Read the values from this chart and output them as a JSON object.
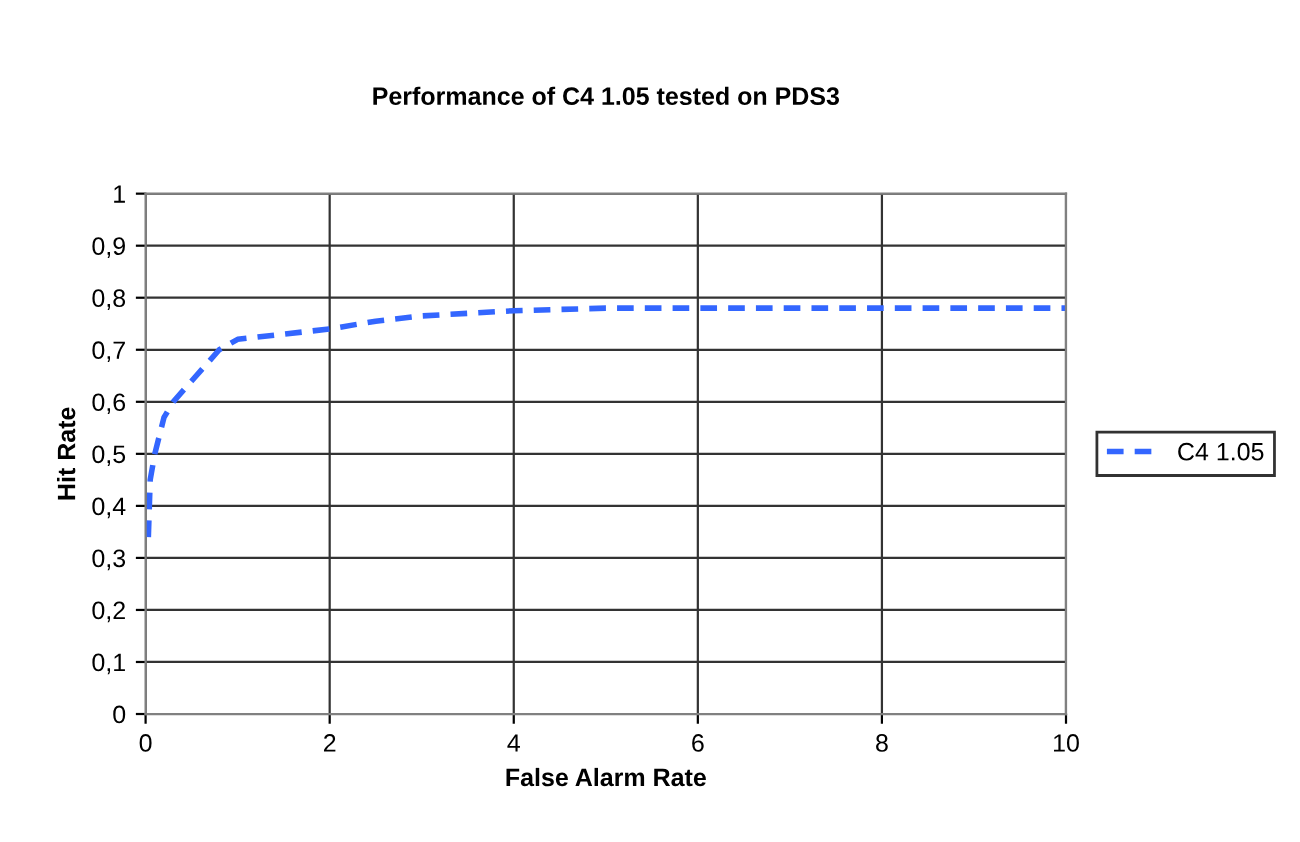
{
  "chart_data": {
    "type": "line",
    "title": "Performance of C4 1.05 tested on PDS3",
    "xlabel": "False Alarm Rate",
    "ylabel": "Hit Rate",
    "series": [
      {
        "name": "C4 1.05",
        "color": "#3366ff",
        "x": [
          0.03,
          0.05,
          0.1,
          0.2,
          0.3,
          0.5,
          0.8,
          1.0,
          1.5,
          2,
          2.5,
          3,
          4,
          5,
          6,
          8,
          10
        ],
        "values": [
          0.34,
          0.45,
          0.5,
          0.57,
          0.6,
          0.64,
          0.7,
          0.72,
          0.73,
          0.74,
          0.755,
          0.765,
          0.775,
          0.78,
          0.78,
          0.78,
          0.78
        ]
      }
    ],
    "xlim": [
      0,
      10
    ],
    "xticks": [
      0,
      2,
      4,
      6,
      8,
      10
    ],
    "ylim": [
      0,
      1
    ],
    "yticks": [
      0,
      {
        "value": 0.1,
        "label": "0,1"
      },
      {
        "value": 0.2,
        "label": "0,2"
      },
      {
        "value": 0.3,
        "label": "0,3"
      },
      {
        "value": 0.4,
        "label": "0,4"
      },
      {
        "value": 0.5,
        "label": "0,5"
      },
      {
        "value": 0.6,
        "label": "0,6"
      },
      {
        "value": 0.7,
        "label": "0,7"
      },
      {
        "value": 0.8,
        "label": "0,8"
      },
      {
        "value": 0.9,
        "label": "0,9"
      },
      1
    ],
    "grid": true,
    "legend": "right",
    "line_style": "dashed",
    "marker": "none"
  }
}
